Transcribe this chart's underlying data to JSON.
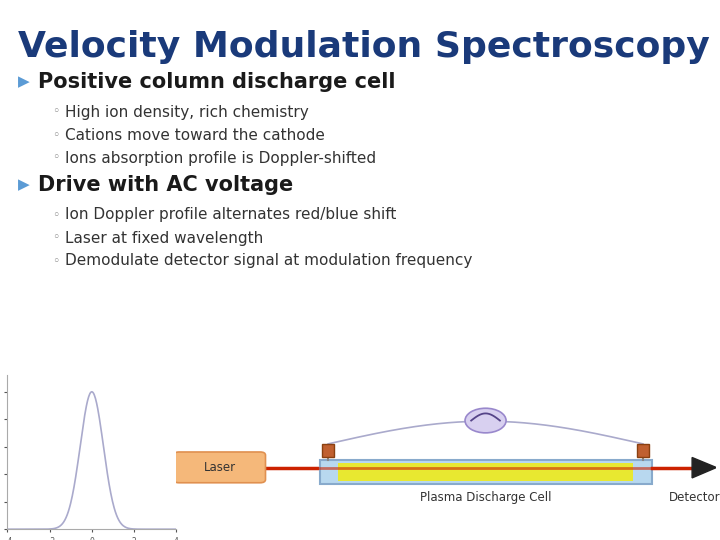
{
  "title": "Velocity Modulation Spectroscopy",
  "title_color": "#1a3a7a",
  "title_fontsize": 26,
  "title_weight": "bold",
  "bg_color": "#ffffff",
  "bullet1_text": "Positive column discharge cell",
  "bullet1_color": "#1a1a1a",
  "bullet1_fontsize": 15,
  "bullet1_weight": "bold",
  "bullet_marker_color": "#5b9bd5",
  "sub_bullets_1": [
    "High ion density, rich chemistry",
    "Cations move toward the cathode",
    "Ions absorption profile is Doppler-shifted"
  ],
  "bullet2_text": "Drive with AC voltage",
  "bullet2_color": "#1a1a1a",
  "bullet2_fontsize": 15,
  "bullet2_weight": "bold",
  "sub_bullets_2": [
    "Ion Doppler profile alternates red/blue shift",
    "Laser at fixed wavelength",
    "Demodulate detector signal at modulation frequency"
  ],
  "sub_bullet_fontsize": 11,
  "sub_bullet_color": "#333333",
  "sub_bullet_marker": "◦",
  "diagram_label_plasma": "Plasma Discharge Cell",
  "diagram_label_detector": "Detector",
  "diagram_label_laser": "Laser"
}
